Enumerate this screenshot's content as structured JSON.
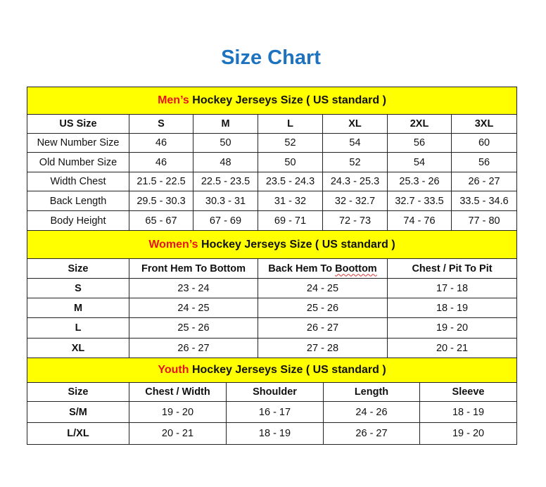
{
  "title": "Size Chart",
  "colors": {
    "title": "#1d73c0",
    "header_bg": "#ffff00",
    "highlight": "#e8141b"
  },
  "men": {
    "header_highlight": "Men’s",
    "header_rest": " Hockey Jerseys Size ( US standard )",
    "columns": [
      "US Size",
      "S",
      "M",
      "L",
      "XL",
      "2XL",
      "3XL"
    ],
    "rows": [
      {
        "label": "New Number Size",
        "values": [
          "46",
          "50",
          "52",
          "54",
          "56",
          "60"
        ]
      },
      {
        "label": "Old Number Size",
        "values": [
          "46",
          "48",
          "50",
          "52",
          "54",
          "56"
        ]
      },
      {
        "label": "Width Chest",
        "values": [
          "21.5 - 22.5",
          "22.5 - 23.5",
          "23.5 - 24.3",
          "24.3 - 25.3",
          "25.3 - 26",
          "26 - 27"
        ]
      },
      {
        "label": "Back Length",
        "values": [
          "29.5 - 30.3",
          "30.3 - 31",
          "31 - 32",
          "32 - 32.7",
          "32.7 - 33.5",
          "33.5 - 34.6"
        ]
      },
      {
        "label": "Body Height",
        "values": [
          "65 - 67",
          "67 - 69",
          "69 - 71",
          "72 - 73",
          "74 - 76",
          "77 - 80"
        ]
      }
    ]
  },
  "women": {
    "header_highlight": "Women’s",
    "header_rest": " Hockey Jerseys Size ( US standard )",
    "columns": [
      "Size",
      "Front Hem To Bottom",
      "Back Hem To Boottom",
      "Chest / Pit To Pit"
    ],
    "rows": [
      {
        "label": "S",
        "values": [
          "23 - 24",
          "24 - 25",
          "17 - 18"
        ]
      },
      {
        "label": "M",
        "values": [
          "24 - 25",
          "25 - 26",
          "18 - 19"
        ]
      },
      {
        "label": "L",
        "values": [
          "25 - 26",
          "26 - 27",
          "19 - 20"
        ]
      },
      {
        "label": "XL",
        "values": [
          "26 - 27",
          "27 - 28",
          "20 - 21"
        ]
      }
    ]
  },
  "youth": {
    "header_highlight": "Youth",
    "header_rest": " Hockey Jerseys Size ( US standard )",
    "columns": [
      "Size",
      "Chest / Width",
      "Shoulder",
      "Length",
      "Sleeve"
    ],
    "rows": [
      {
        "label": "S/M",
        "values": [
          "19 - 20",
          "16 - 17",
          "24 - 26",
          "18 - 19"
        ]
      },
      {
        "label": "L/XL",
        "values": [
          "20 - 21",
          "18 - 19",
          "26 - 27",
          "19 - 20"
        ]
      }
    ]
  }
}
